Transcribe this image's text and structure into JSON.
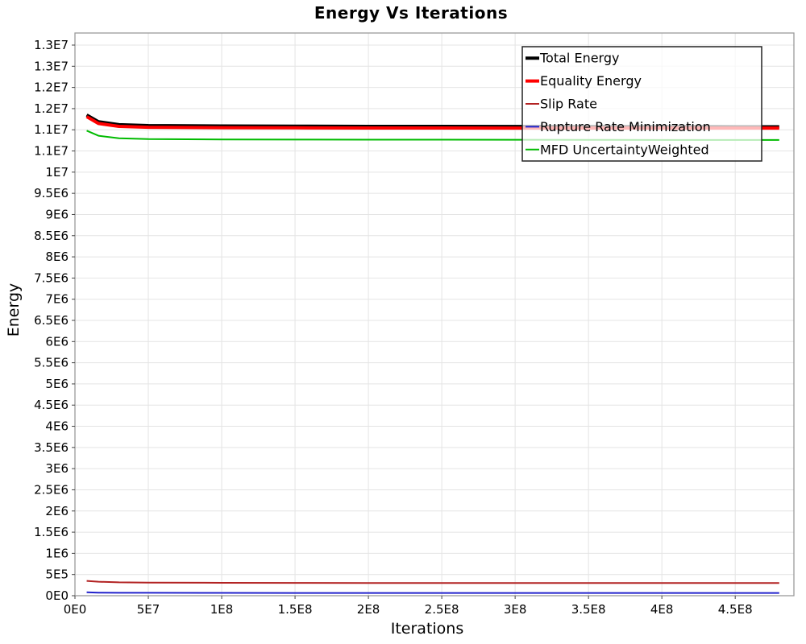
{
  "chart_data": {
    "type": "line",
    "title": "Energy Vs Iterations",
    "xlabel": "Iterations",
    "ylabel": "Energy",
    "xlim": [
      0,
      490000000
    ],
    "ylim": [
      0,
      13300000
    ],
    "grid": true,
    "legend": {
      "position": "top-right-inside",
      "background_opacity": 0.72
    },
    "x_ticks": {
      "values": [
        0,
        50000000,
        100000000,
        150000000,
        200000000,
        250000000,
        300000000,
        350000000,
        400000000,
        450000000
      ],
      "labels": [
        "0E0",
        "5E7",
        "1E8",
        "1.5E8",
        "2E8",
        "2.5E8",
        "3E8",
        "3.5E8",
        "4E8",
        "4.5E8"
      ]
    },
    "y_ticks": {
      "values": [
        0,
        500000,
        1000000,
        1500000,
        2000000,
        2500000,
        3000000,
        3500000,
        4000000,
        4500000,
        5000000,
        5500000,
        6000000,
        6500000,
        7000000,
        7500000,
        8000000,
        8500000,
        9000000,
        9500000,
        10000000,
        10500000,
        11000000,
        11500000,
        12000000,
        12500000,
        13000000
      ],
      "labels": [
        "0E0",
        "5E5",
        "1E6",
        "1.5E6",
        "2E6",
        "2.5E6",
        "3E6",
        "3.5E6",
        "4E6",
        "4.5E6",
        "5E6",
        "5.5E6",
        "6E6",
        "6.5E6",
        "7E6",
        "7.5E6",
        "8E6",
        "8.5E6",
        "9E6",
        "9.5E6",
        "1E7",
        "1.1E7",
        "1.1E7",
        "1.2E7",
        "1.2E7",
        "1.3E7",
        "1.3E7"
      ]
    },
    "x_shared": [
      8000000,
      16000000,
      30000000,
      50000000,
      100000000,
      150000000,
      200000000,
      250000000,
      300000000,
      350000000,
      400000000,
      450000000,
      480000000
    ],
    "series": [
      {
        "name": "Total Energy",
        "color": "#000000",
        "width": 4,
        "values": [
          11350000,
          11190000,
          11120000,
          11100000,
          11090000,
          11085000,
          11080000,
          11080000,
          11078000,
          11075000,
          11073000,
          11072000,
          11072000
        ]
      },
      {
        "name": "Equality Energy",
        "color": "#ff0000",
        "width": 4,
        "values": [
          11310000,
          11150000,
          11080000,
          11060000,
          11050000,
          11046000,
          11043000,
          11042000,
          11041000,
          11040000,
          11040000,
          11040000,
          11040000
        ]
      },
      {
        "name": "Slip Rate",
        "color": "#b22222",
        "width": 2,
        "values": [
          350000,
          330000,
          315000,
          310000,
          305000,
          302000,
          300000,
          300000,
          300000,
          300000,
          300000,
          300000,
          300000
        ]
      },
      {
        "name": "Rupture Rate Minimization",
        "color": "#2222cc",
        "width": 2,
        "values": [
          80000,
          72000,
          70000,
          68000,
          66000,
          65000,
          65000,
          65000,
          65000,
          65000,
          65000,
          65000,
          65000
        ]
      },
      {
        "name": "MFD UncertaintyWeighted",
        "color": "#00bb00",
        "width": 2,
        "values": [
          10980000,
          10860000,
          10800000,
          10780000,
          10772000,
          10770000,
          10768000,
          10766000,
          10764000,
          10762000,
          10760000,
          10760000,
          10760000
        ]
      }
    ]
  },
  "style": {
    "grid_color": "#e4e4e4",
    "border_color": "#9b9b9b",
    "tick_color": "#444444",
    "text_color": "#000000",
    "legend_border_color": "#222222"
  }
}
